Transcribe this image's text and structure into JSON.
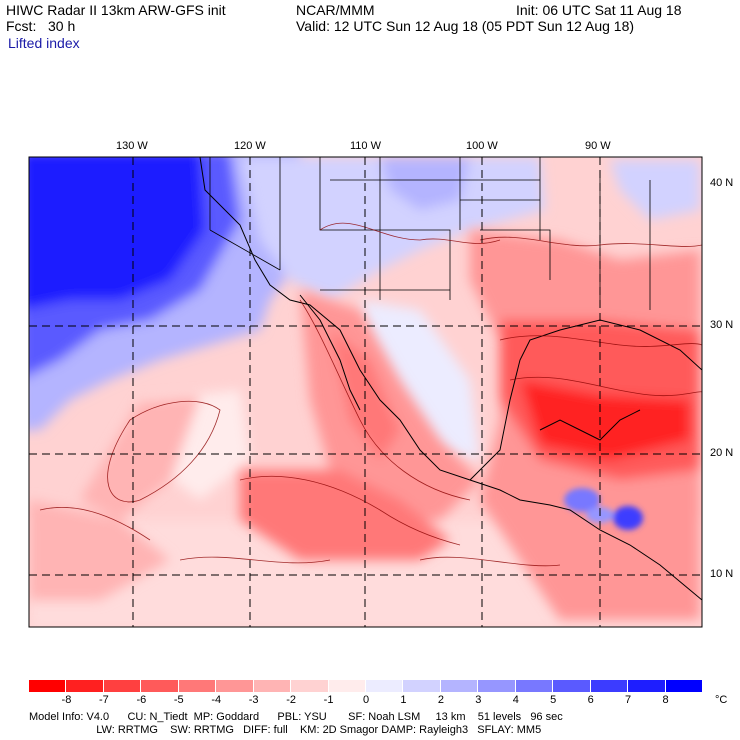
{
  "header": {
    "line1_left": "HIWC Radar II 13km ARW-GFS init",
    "line1_mid": "NCAR/MMM",
    "line1_right": "Init: 06 UTC Sat 11 Aug 18",
    "line2_left": "Fcst:   30 h",
    "line2_right": "Valid: 12 UTC Sun 12 Aug 18 (05 PDT Sun 12 Aug 18)",
    "field": "Lifted index"
  },
  "axes": {
    "lon_labels": [
      "130 W",
      "120 W",
      "110 W",
      "100 W",
      "90 W"
    ],
    "lat_labels": [
      "40 N",
      "30 N",
      "20 N",
      "10 N"
    ]
  },
  "colorbar": {
    "ticks": [
      "-8",
      "-7",
      "-6",
      "-5",
      "-4",
      "-3",
      "-2",
      "-1",
      "0",
      "1",
      "2",
      "3",
      "4",
      "5",
      "6",
      "7",
      "8"
    ],
    "unit": "°C",
    "colors": [
      "#ff0000",
      "#ff2020",
      "#ff4040",
      "#ff5a5a",
      "#ff7878",
      "#ff9696",
      "#ffb4b4",
      "#ffd2d2",
      "#ffecec",
      "#ececff",
      "#d2d2ff",
      "#b4b4ff",
      "#9696ff",
      "#7878ff",
      "#5a5aff",
      "#3c3cff",
      "#1e1eff",
      "#0000ff"
    ]
  },
  "footer": {
    "line1": "Model Info: V4.0      CU: N_Tiedt  MP: Goddard      PBL: YSU       SF: Noah LSM     13 km    51 levels   96 sec",
    "line2": "                      LW: RRTMG    SW: RRTMG   DIFF: full    KM: 2D Smagor DAMP: Rayleigh3   SFLAY: MM5"
  }
}
